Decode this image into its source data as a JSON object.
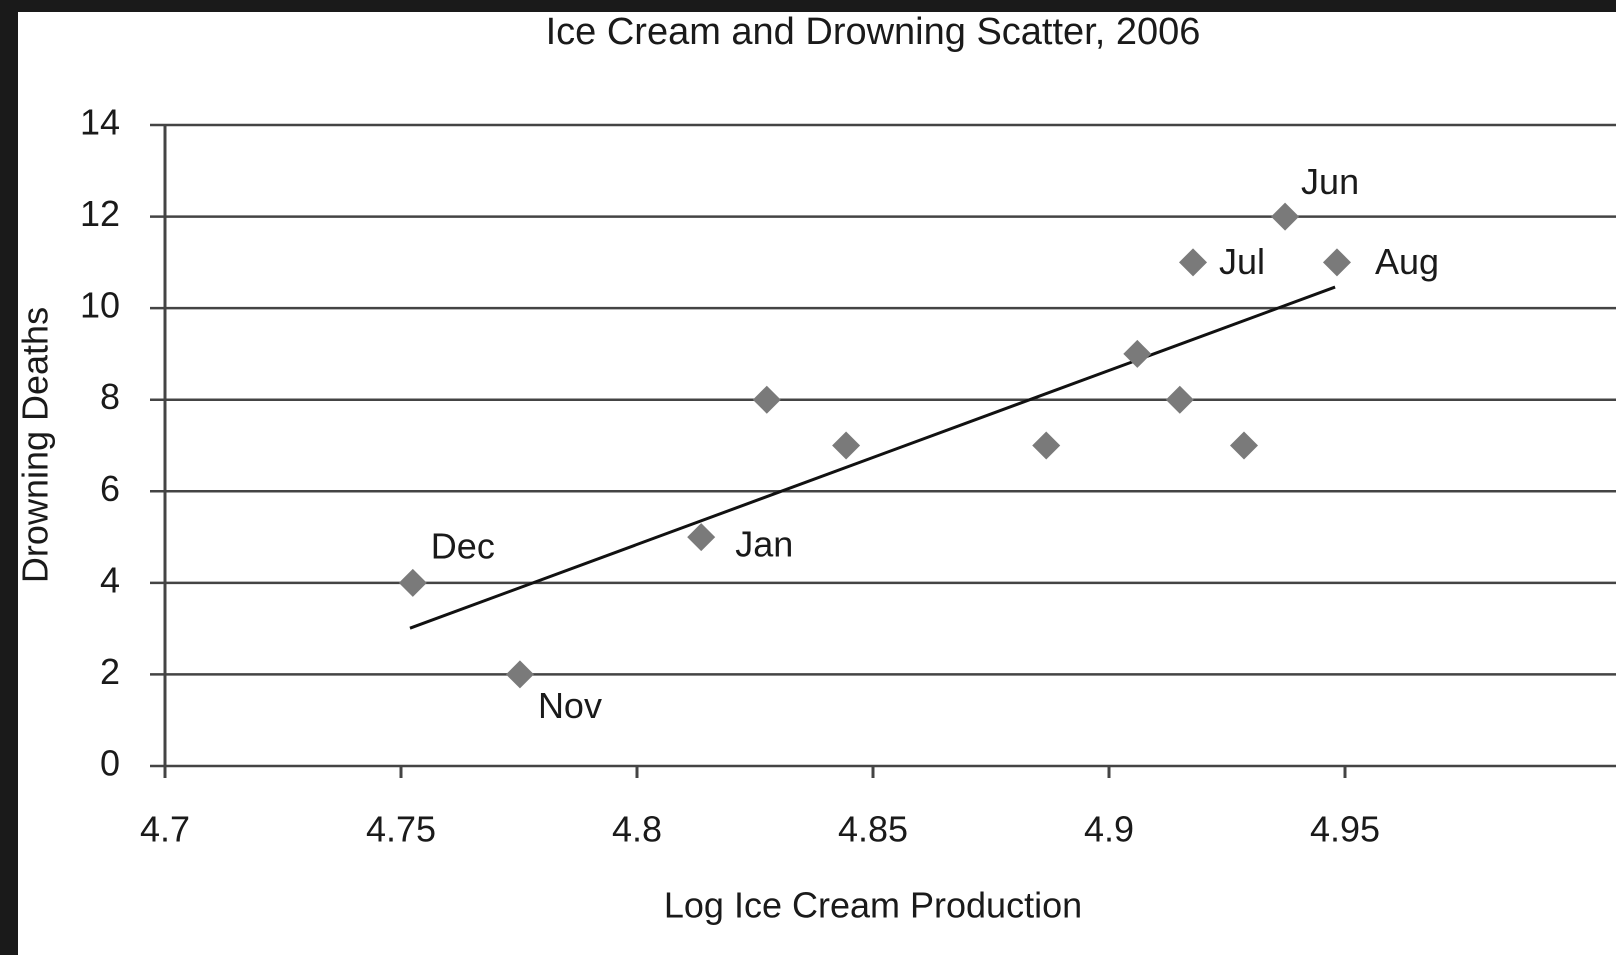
{
  "chart_data": {
    "type": "scatter",
    "title": "Ice Cream and Drowning Scatter, 2006",
    "x_label": "Log Ice Cream Production",
    "y_label": "Drowning Deaths",
    "x": [
      4.7525,
      4.7752,
      4.8136,
      4.8275,
      4.8443,
      4.8867,
      4.906,
      4.915,
      4.9178,
      4.9286,
      4.9373,
      4.9483
    ],
    "values": [
      4,
      2,
      5,
      8,
      7,
      7,
      9,
      8,
      11,
      7,
      12,
      11
    ],
    "labels": [
      "Dec",
      "Nov",
      "Jan",
      null,
      null,
      null,
      null,
      null,
      "Jul",
      null,
      "Jun",
      "Aug"
    ],
    "color": "#7a7a7a",
    "trendline": {
      "x": [
        4.7519,
        4.9479
      ],
      "y": [
        3.01,
        10.46
      ],
      "color": "#111111"
    },
    "xlim": [
      4.7,
      5
    ],
    "xticks": [
      4.7,
      4.75,
      4.8,
      4.85,
      4.9,
      4.95
    ],
    "ylim": [
      0,
      14
    ],
    "yticks": [
      0,
      2,
      4,
      6,
      8,
      10,
      12,
      14
    ],
    "grid": true
  }
}
